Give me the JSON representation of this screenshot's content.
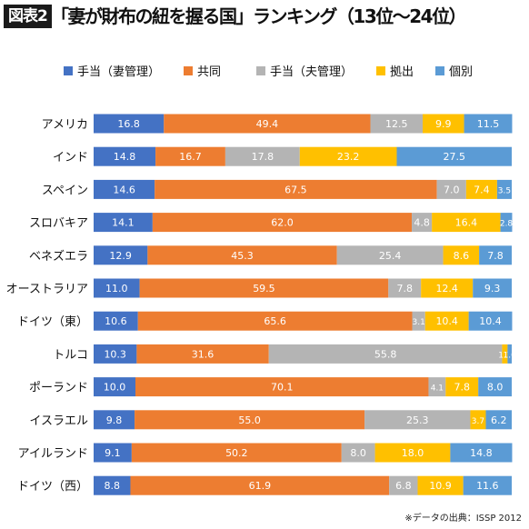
{
  "fig_label": "図表2",
  "title": "「妻が財布の紐を握る国」ランキング（13位～24位）",
  "source": "※データの出典：ISSP 2012",
  "colors": {
    "手当（妻管理）": "#4472c4",
    "共同": "#ed7d31",
    "手当（夫管理）": "#b4b4b4",
    "拠出": "#ffc000",
    "個別": "#5b9bd5"
  },
  "chart_data": {
    "type": "bar",
    "orientation": "horizontal",
    "stacked": true,
    "normalized_percent": true,
    "title": "「妻が財布の紐を握る国」ランキング（13位～24位）",
    "legend_position": "top",
    "xlim": [
      0,
      100
    ],
    "categories": [
      "アメリカ",
      "インド",
      "スペイン",
      "スロバキア",
      "ベネズエラ",
      "オーストラリア",
      "ドイツ（東）",
      "トルコ",
      "ポーランド",
      "イスラエル",
      "アイルランド",
      "ドイツ（西）"
    ],
    "series": [
      {
        "name": "手当（妻管理）",
        "values": [
          16.8,
          14.8,
          14.6,
          14.1,
          12.9,
          11.0,
          10.6,
          10.3,
          10.0,
          9.8,
          9.1,
          8.8
        ]
      },
      {
        "name": "共同",
        "values": [
          49.4,
          16.7,
          67.5,
          62.0,
          45.3,
          59.5,
          65.6,
          31.6,
          70.1,
          55.0,
          50.2,
          61.9
        ]
      },
      {
        "name": "手当（夫管理）",
        "values": [
          12.5,
          17.8,
          7.0,
          4.8,
          25.4,
          7.8,
          3.1,
          55.8,
          4.1,
          25.3,
          8.0,
          6.8
        ]
      },
      {
        "name": "拠出",
        "values": [
          9.9,
          23.2,
          7.4,
          16.4,
          8.6,
          12.4,
          10.4,
          1.3,
          7.8,
          3.7,
          18.0,
          10.9
        ]
      },
      {
        "name": "個別",
        "values": [
          11.5,
          27.5,
          3.5,
          2.8,
          7.8,
          9.3,
          10.4,
          1.0,
          8.0,
          6.2,
          14.8,
          11.6
        ]
      }
    ]
  }
}
